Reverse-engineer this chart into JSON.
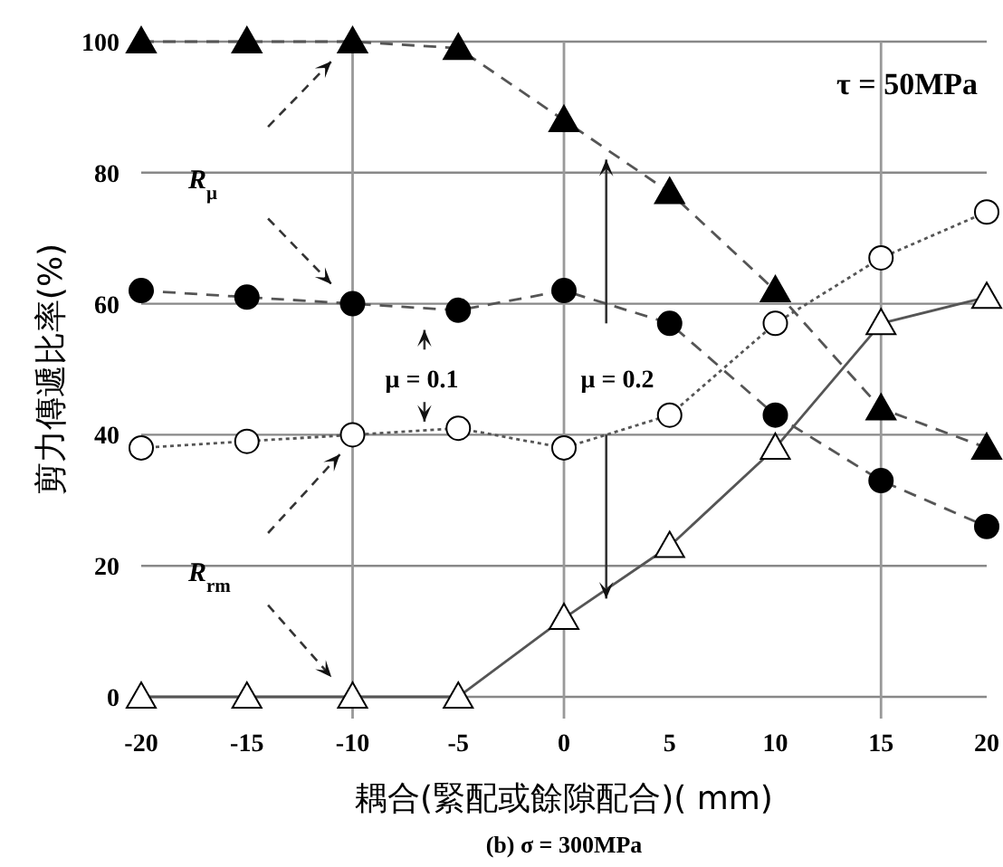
{
  "chart_data": {
    "type": "line",
    "title": "(b) σ = 300MPa",
    "xlabel": "耦合(緊配或餘隙配合)( mm)",
    "ylabel": "剪力傳遞比率(%)",
    "x": [
      -20,
      -15,
      -10,
      -5,
      0,
      5,
      10,
      15,
      20
    ],
    "series": [
      {
        "color": "#000000",
        "marker": "triangle",
        "line_style": "dashed",
        "values": [
          100,
          100,
          100,
          99,
          88,
          77,
          62,
          44,
          38
        ]
      },
      {
        "color": "#000000",
        "marker": "circle",
        "line_style": "dashed",
        "values": [
          62,
          61,
          60,
          59,
          62,
          57,
          43,
          33,
          26
        ]
      },
      {
        "color": "#ffffff",
        "marker": "circle",
        "line_style": "dotted",
        "values": [
          38,
          39,
          40,
          41,
          38,
          43,
          57,
          67,
          74
        ]
      },
      {
        "color": "#ffffff",
        "marker": "triangle",
        "line_style": "solid",
        "values": [
          0,
          0,
          0,
          0,
          12,
          23,
          38,
          57,
          61
        ]
      }
    ],
    "xlim": [
      -20,
      20
    ],
    "xticks": [
      -20,
      -15,
      -10,
      -5,
      0,
      5,
      10,
      15,
      20
    ],
    "ylim": [
      0,
      100
    ],
    "yticks": [
      0,
      20,
      40,
      60,
      80,
      100
    ],
    "grid": "y",
    "ref_lines": [
      {
        "axis": "x",
        "value": -10,
        "color": "#999999"
      },
      {
        "axis": "x",
        "value": 0,
        "color": "#999999"
      },
      {
        "axis": "x",
        "value": 15,
        "color": "#999999"
      }
    ],
    "annotations": [
      "τ = 50MPa",
      "*R*$_{μ}$",
      "*R*$_{rm}$",
      "μ = 0.1",
      "μ = 0.2"
    ]
  }
}
